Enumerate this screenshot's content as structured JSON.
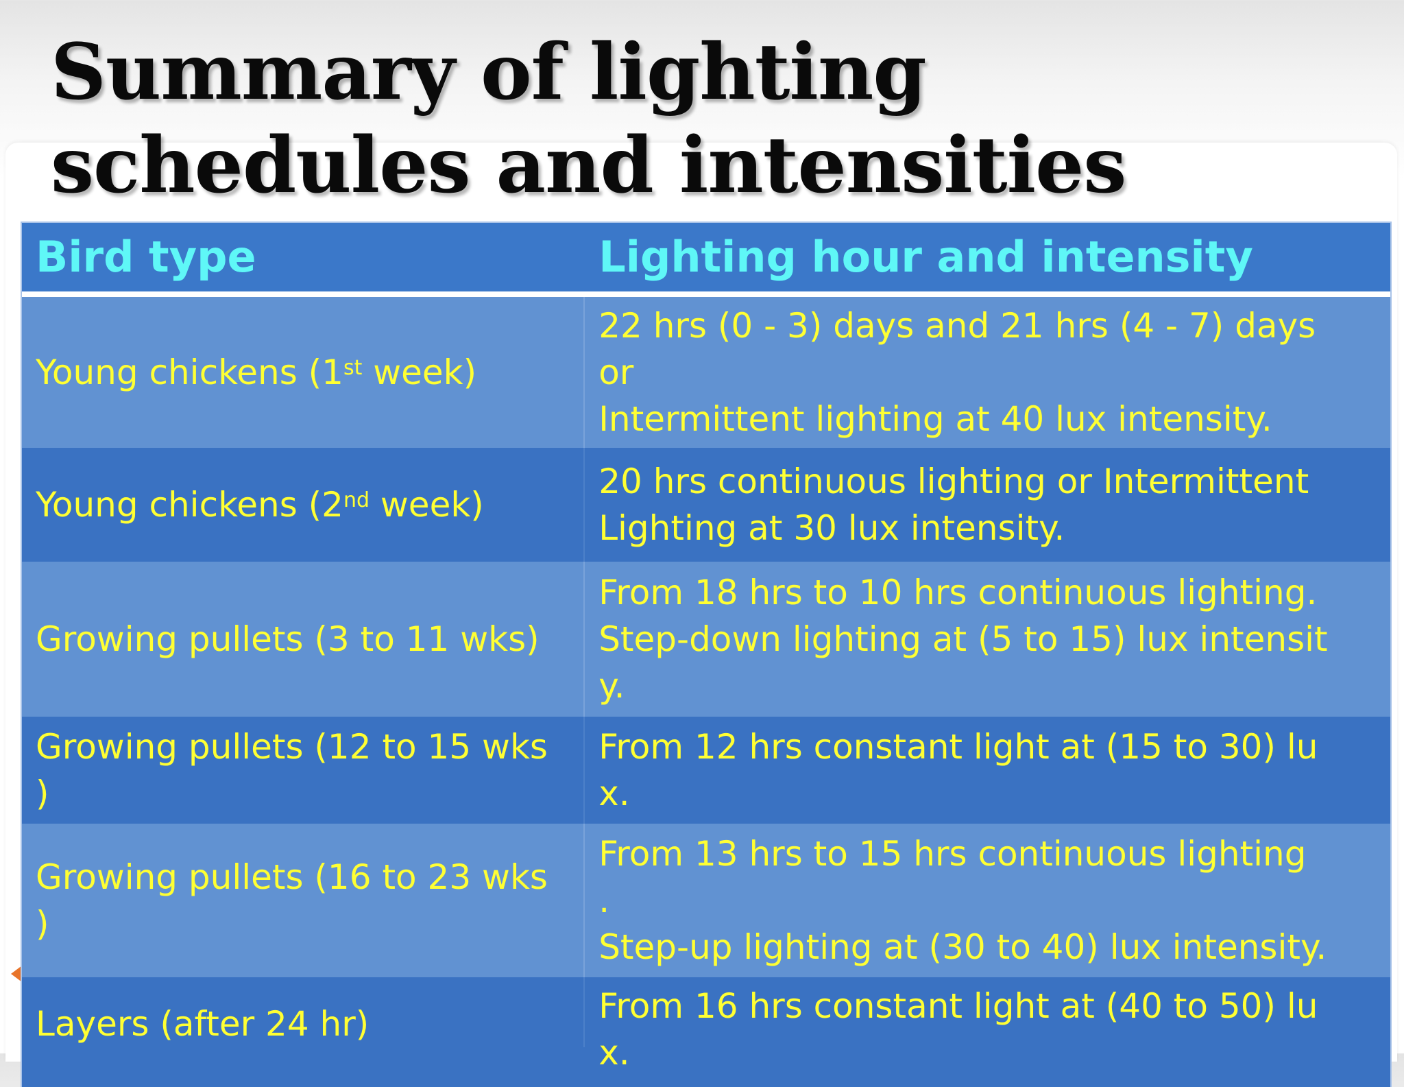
{
  "title": "Summary of lighting schedules and intensities",
  "table": {
    "headers": {
      "bird_type": "Bird type",
      "lighting": "Lighting hour and intensity"
    },
    "rows": [
      {
        "bird_pre": "Young chickens (1",
        "bird_sup": "st",
        "bird_post": " week)",
        "lighting": "22 hrs (0 - 3) days and 21 hrs (4 - 7) days\nor\nIntermittent lighting at 40 lux intensity."
      },
      {
        "bird_pre": "Young chickens (2",
        "bird_sup": "nd",
        "bird_post": " week)",
        "lighting": "20 hrs continuous lighting or Intermittent\nLighting at 30 lux intensity."
      },
      {
        "bird": "Growing pullets (3 to 11 wks)",
        "lighting": "From 18 hrs to 10 hrs continuous lighting.\nStep-down lighting at (5 to 15) lux intensit\ny."
      },
      {
        "bird": "Growing pullets (12 to 15 wks\n)",
        "lighting": "From 12 hrs constant light at (15 to 30) lu\nx."
      },
      {
        "bird": "Growing pullets (16 to 23 wks\n)",
        "lighting": "From 13 hrs to 15 hrs continuous lighting\n.\nStep-up lighting at (30 to 40) lux intensity."
      },
      {
        "bird": "Layers (after 24 hr)",
        "lighting": "From 16 hrs constant light at (40 to 50) lu\nx."
      }
    ]
  }
}
